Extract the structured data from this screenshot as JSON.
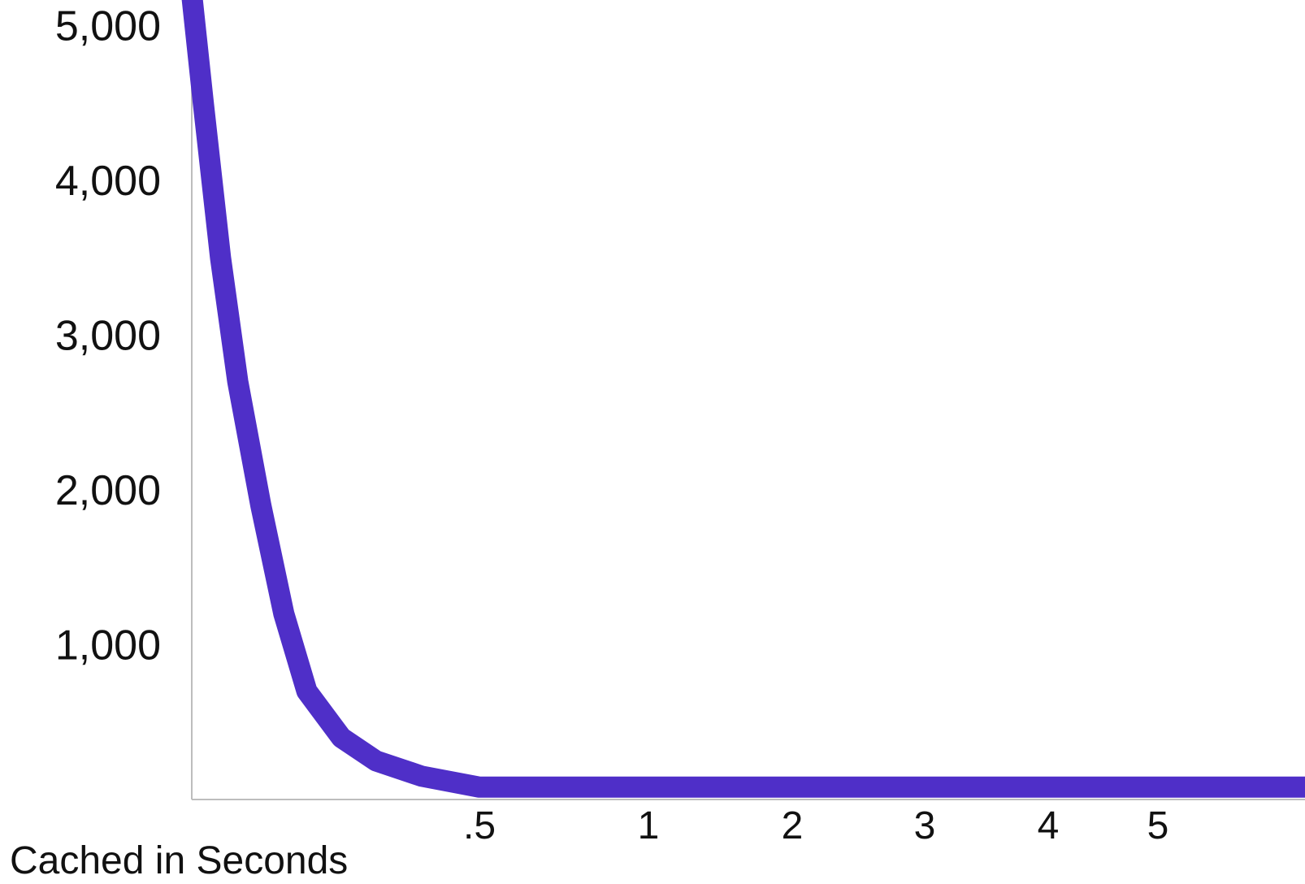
{
  "chart_data": {
    "type": "line",
    "title": "",
    "xlabel": "Cached in Seconds",
    "ylabel": "",
    "x_tick_labels": [
      ".5",
      "1",
      "2",
      "3",
      "4",
      "5"
    ],
    "y_ticks": [
      1000,
      2000,
      3000,
      4000,
      5000
    ],
    "y_tick_labels": [
      "1,000",
      "2,000",
      "3,000",
      "4,000",
      "5,000"
    ],
    "ylim": [
      0,
      5200
    ],
    "grid": false,
    "legend": "none",
    "series": [
      {
        "x": [
          0,
          0.02,
          0.05,
          0.08,
          0.12,
          0.16,
          0.2,
          0.26,
          0.32,
          0.4,
          0.5,
          1,
          2,
          3,
          4,
          5,
          6
        ],
        "values": [
          5200,
          4500,
          3500,
          2700,
          1900,
          1200,
          700,
          400,
          250,
          150,
          80,
          80,
          80,
          80,
          80,
          80,
          80
        ]
      }
    ],
    "colors": {
      "line": "#4f2fc8",
      "axis": "#bdbdbd",
      "text": "#111111"
    }
  }
}
